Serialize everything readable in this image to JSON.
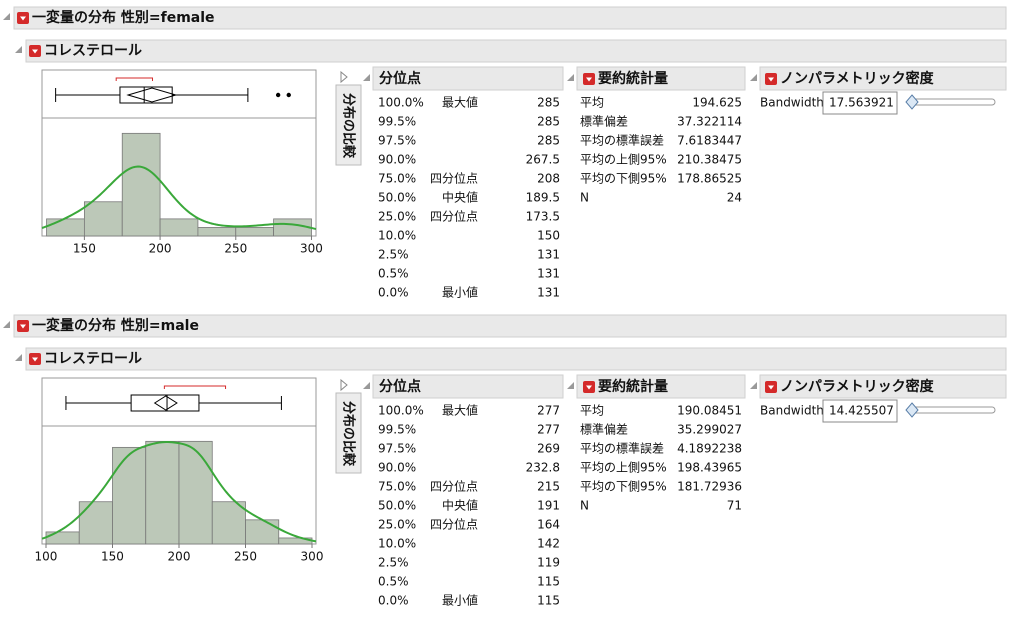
{
  "panels": [
    {
      "title": "一変量の分布 性別=female",
      "variable": "コレステロール",
      "histogram": {
        "type": "histogram",
        "bins": [
          125,
          150,
          175,
          200,
          225,
          250,
          275,
          300
        ],
        "counts": [
          2,
          4,
          12,
          2,
          1,
          1,
          2
        ],
        "xlim": [
          122,
          303
        ],
        "xticks": [
          150,
          200,
          250,
          300
        ],
        "color": "#bcc8b8",
        "curve_color": "#3aa83a"
      },
      "boxplot": {
        "whiskers": [
          131,
          258
        ],
        "outliers": [
          278,
          285
        ],
        "shortest_half": [
          171,
          195
        ]
      },
      "compare_button": "分布の比較",
      "quantiles": {
        "title": "分位点",
        "rows": [
          [
            "100.0%",
            "最大値",
            285
          ],
          [
            "99.5%",
            null,
            285
          ],
          [
            "97.5%",
            null,
            285
          ],
          [
            "90.0%",
            null,
            267.5
          ],
          [
            "75.0%",
            "四分位点",
            208
          ],
          [
            "50.0%",
            "中央値",
            189.5
          ],
          [
            "25.0%",
            "四分位点",
            173.5
          ],
          [
            "10.0%",
            null,
            150
          ],
          [
            "2.5%",
            null,
            131
          ],
          [
            "0.5%",
            null,
            131
          ],
          [
            "0.0%",
            "最小値",
            131
          ]
        ]
      },
      "summary": {
        "title": "要約統計量",
        "rows": [
          [
            "平均",
            194.625
          ],
          [
            "標準偏差",
            37.322114
          ],
          [
            "平均の標準誤差",
            7.6183447
          ],
          [
            "平均の上側95%",
            210.38475
          ],
          [
            "平均の下側95%",
            178.86525
          ],
          [
            "N",
            24
          ]
        ]
      },
      "density": {
        "title": "ノンパラメトリック密度",
        "label": "Bandwidth",
        "bandwidth": 17.563921
      }
    },
    {
      "title": "一変量の分布 性別=male",
      "variable": "コレステロール",
      "histogram": {
        "type": "histogram",
        "bins": [
          100,
          125,
          150,
          175,
          200,
          225,
          250,
          275,
          300
        ],
        "counts": [
          2,
          7,
          16,
          17,
          17,
          7,
          4,
          1
        ],
        "xlim": [
          97,
          303
        ],
        "xticks": [
          100,
          150,
          200,
          250,
          300
        ],
        "color": "#bcc8b8",
        "curve_color": "#3aa83a"
      },
      "boxplot": {
        "whiskers": [
          115,
          277
        ],
        "outliers": [],
        "shortest_half": [
          189,
          235
        ]
      },
      "compare_button": "分布の比較",
      "quantiles": {
        "title": "分位点",
        "rows": [
          [
            "100.0%",
            "最大値",
            277
          ],
          [
            "99.5%",
            null,
            277
          ],
          [
            "97.5%",
            null,
            269
          ],
          [
            "90.0%",
            null,
            232.8
          ],
          [
            "75.0%",
            "四分位点",
            215
          ],
          [
            "50.0%",
            "中央値",
            191
          ],
          [
            "25.0%",
            "四分位点",
            164
          ],
          [
            "10.0%",
            null,
            142
          ],
          [
            "2.5%",
            null,
            119
          ],
          [
            "0.5%",
            null,
            115
          ],
          [
            "0.0%",
            "最小値",
            115
          ]
        ]
      },
      "summary": {
        "title": "要約統計量",
        "rows": [
          [
            "平均",
            190.08451
          ],
          [
            "標準偏差",
            35.299027
          ],
          [
            "平均の標準誤差",
            4.1892238
          ],
          [
            "平均の上側95%",
            198.43965
          ],
          [
            "平均の下側95%",
            181.72936
          ],
          [
            "N",
            71
          ]
        ]
      },
      "density": {
        "title": "ノンパラメトリック密度",
        "label": "Bandwidth",
        "bandwidth": 14.425507
      }
    }
  ]
}
